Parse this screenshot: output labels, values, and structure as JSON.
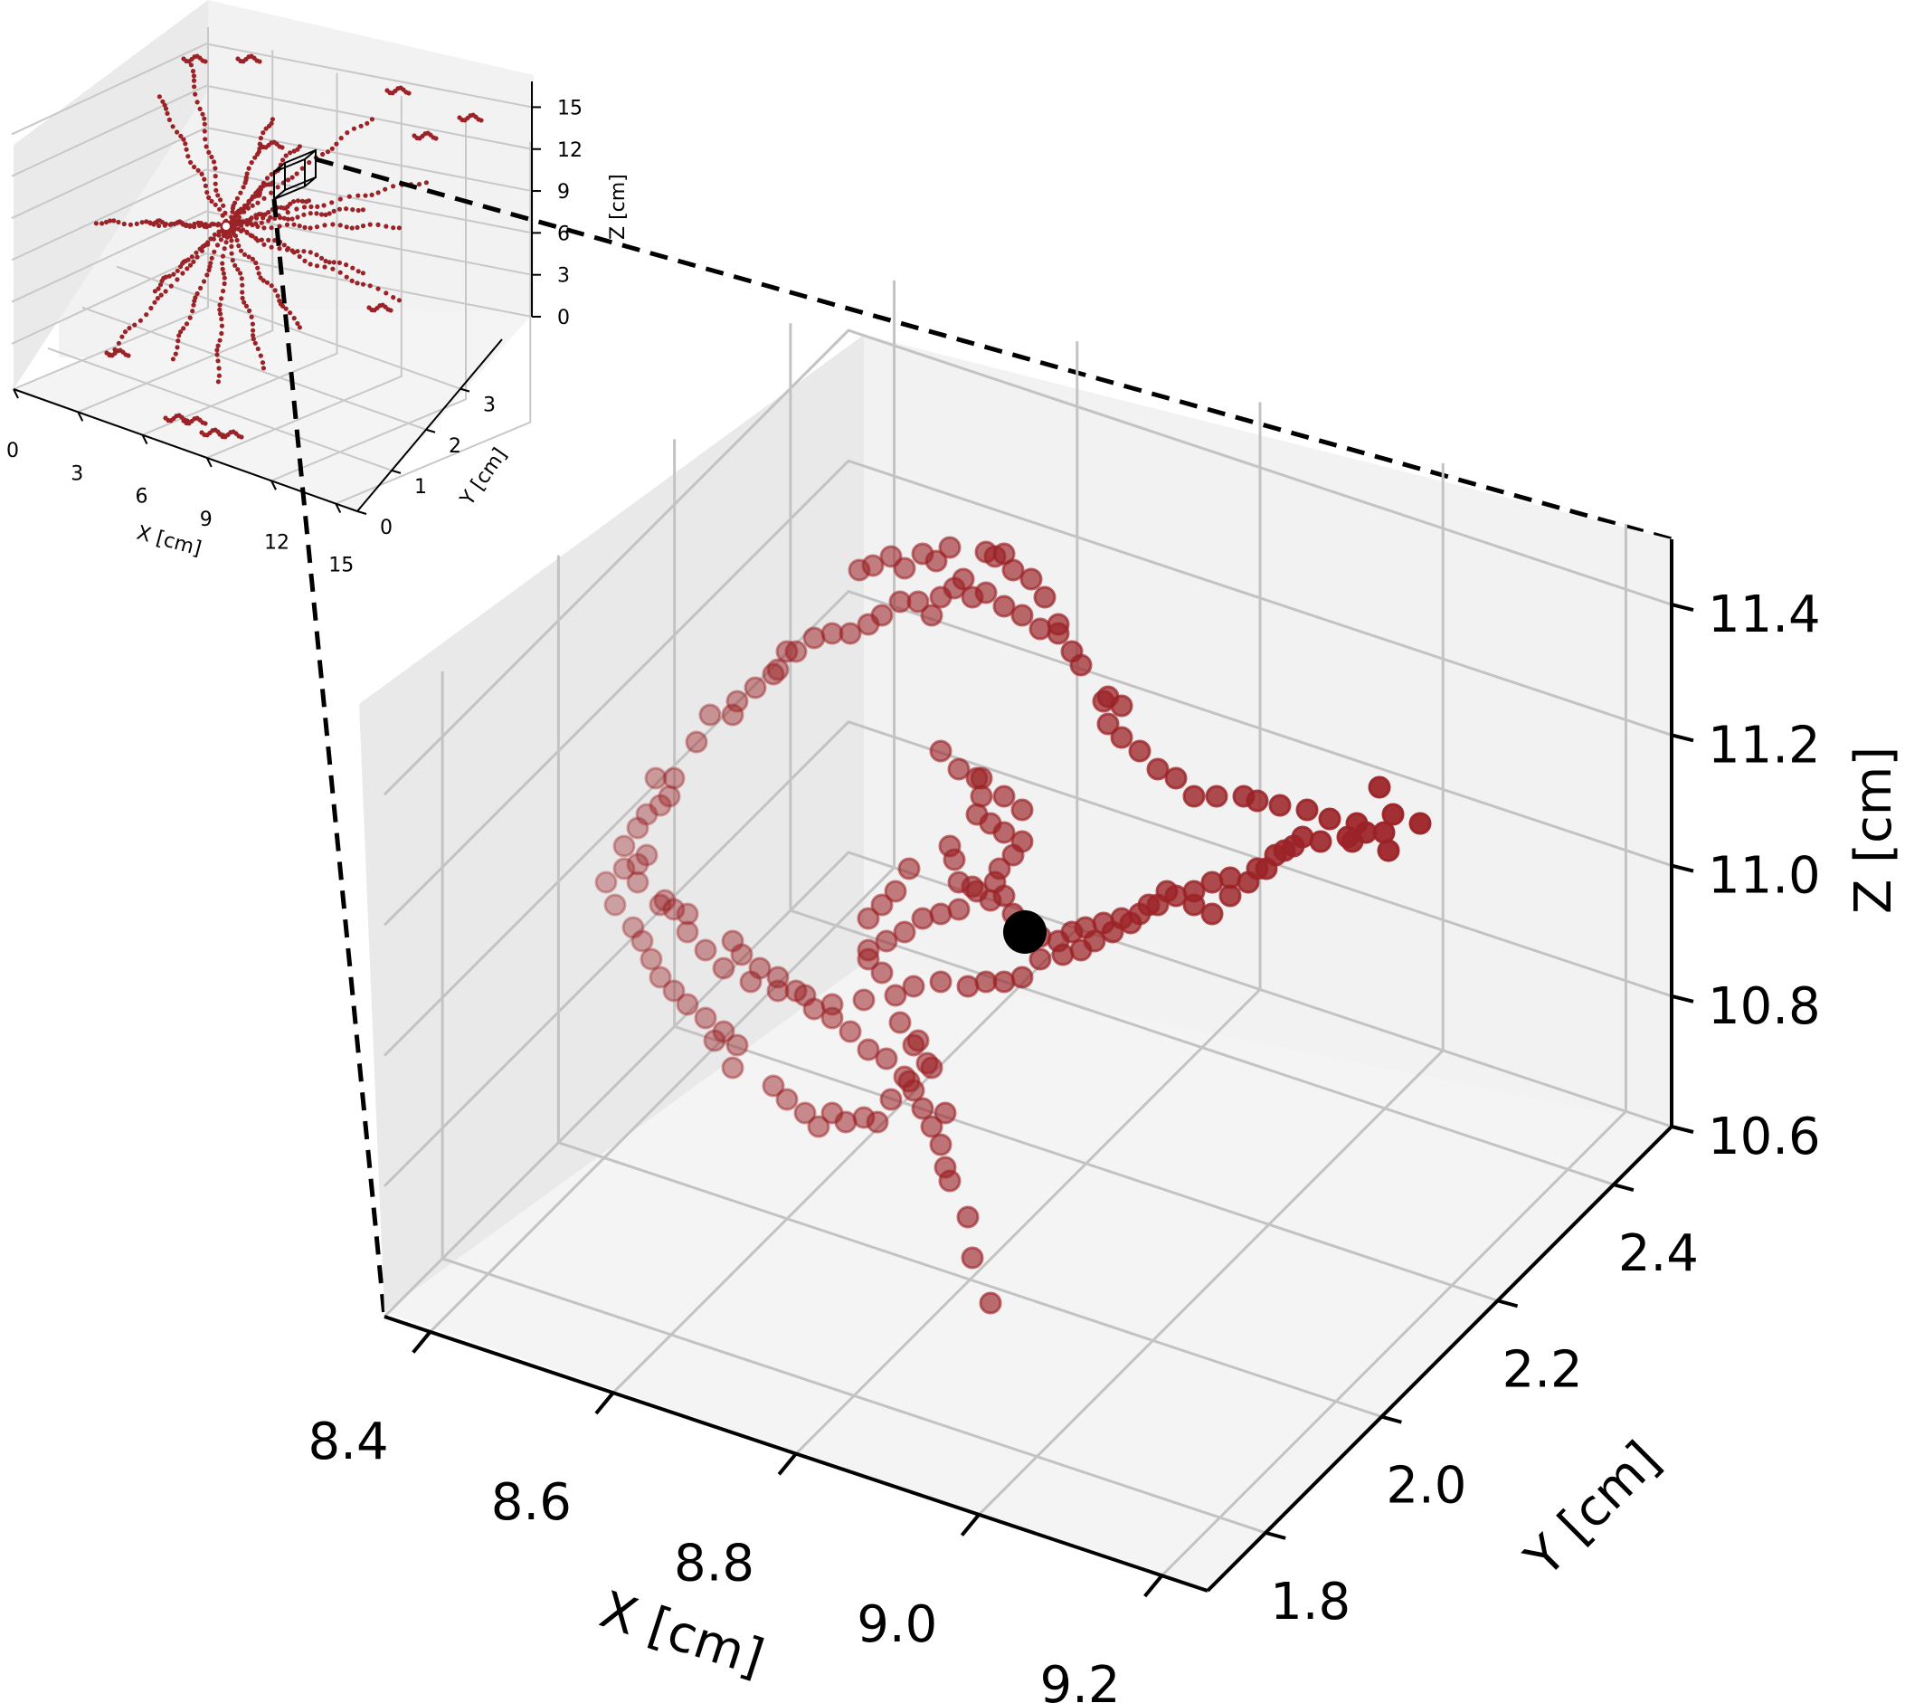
{
  "chart_data": [
    {
      "type": "scatter",
      "panel": "inset-overview",
      "projection": "3d",
      "xlabel": "X [cm]",
      "ylabel": "Y [cm]",
      "zlabel": "Z [cm]",
      "xlim": [
        0,
        16
      ],
      "ylim": [
        0,
        4
      ],
      "zlim": [
        0,
        16
      ],
      "x_ticks": [
        0,
        3,
        6,
        9,
        12,
        15
      ],
      "x_tick_labels": [
        "0",
        "3",
        "6",
        "9",
        "12",
        "15"
      ],
      "y_ticks": [
        0,
        1,
        2,
        3
      ],
      "y_tick_labels": [
        "0",
        "1",
        "2",
        "3"
      ],
      "z_ticks": [
        0,
        3,
        6,
        9,
        12,
        15
      ],
      "z_tick_labels": [
        "0",
        "3",
        "6",
        "9",
        "12",
        "15"
      ],
      "grid": true,
      "point_color": "#9b2226",
      "description_of_points": "dense track hits radiating from a central vertex",
      "zoom_box": {
        "x": [
          8.35,
          9.2
        ],
        "y": [
          1.75,
          2.5
        ],
        "z": [
          10.6,
          11.5
        ]
      }
    },
    {
      "type": "scatter",
      "panel": "main-zoom",
      "projection": "3d",
      "xlabel": "X [cm]",
      "ylabel": "Y [cm]",
      "zlabel": "Z [cm]",
      "xlim": [
        8.35,
        9.25
      ],
      "ylim": [
        1.7,
        2.5
      ],
      "zlim": [
        10.6,
        11.5
      ],
      "x_ticks": [
        8.4,
        8.6,
        8.8,
        9.0,
        9.2
      ],
      "x_tick_labels": [
        "8.4",
        "8.6",
        "8.8",
        "9.0",
        "9.2"
      ],
      "y_ticks": [
        1.8,
        2.0,
        2.2,
        2.4
      ],
      "y_tick_labels": [
        "1.8",
        "2.0",
        "2.2",
        "2.4"
      ],
      "z_ticks": [
        10.6,
        10.8,
        11.0,
        11.2,
        11.4
      ],
      "z_tick_labels": [
        "10.6",
        "10.8",
        "11.0",
        "11.2",
        "11.4"
      ],
      "grid": true,
      "point_color": "#9b2226",
      "vertex_color": "#000000",
      "vertex": {
        "x": 8.85,
        "y": 2.3,
        "z": 10.95
      }
    }
  ]
}
